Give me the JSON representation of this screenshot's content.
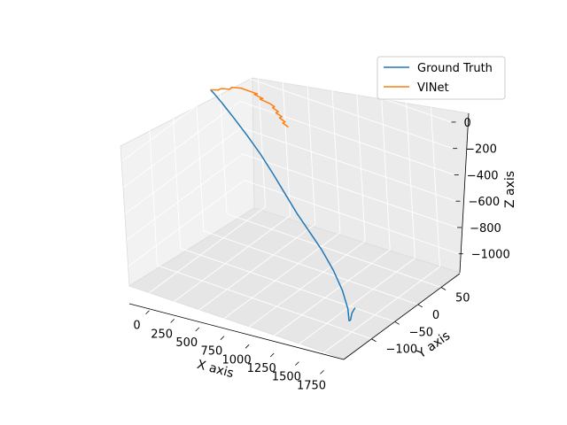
{
  "chart_data": {
    "type": "line",
    "projection": "3d",
    "title": "",
    "xlabel": "X axis",
    "ylabel": "Y axis",
    "zlabel": "Z axis",
    "xlim": [
      -200,
      1950
    ],
    "ylim": [
      -160,
      90
    ],
    "zlim": [
      -1150,
      60
    ],
    "x_ticks": [
      0,
      250,
      500,
      750,
      1000,
      1250,
      1500,
      1750
    ],
    "x_tick_labels": [
      "0",
      "250",
      "500",
      "750",
      "1000",
      "1250",
      "1500",
      "1750"
    ],
    "y_ticks": [
      -100,
      -50,
      0,
      50
    ],
    "y_tick_labels": [
      "−100",
      "−50",
      "0",
      "50"
    ],
    "z_ticks": [
      0,
      -200,
      -400,
      -600,
      -800,
      -1000
    ],
    "z_tick_labels": [
      "0",
      "−200",
      "−400",
      "−600",
      "−800",
      "−1000"
    ],
    "grid": true,
    "legend": "top-right",
    "series": [
      {
        "name": "Ground Truth",
        "color": "#1f77b4",
        "x": [
          0,
          60,
          150,
          300,
          450,
          600,
          750,
          900,
          1050,
          1200,
          1350,
          1500,
          1620,
          1700,
          1730,
          1720,
          1690,
          1700
        ],
        "y": [
          -10,
          -15,
          -18,
          -25,
          -30,
          -35,
          -42,
          -50,
          -58,
          -65,
          -72,
          -80,
          -88,
          -95,
          -100,
          -95,
          -85,
          -80
        ],
        "z": [
          0,
          0,
          -40,
          -100,
          -180,
          -270,
          -360,
          -450,
          -540,
          -620,
          -700,
          -800,
          -900,
          -1000,
          -1070,
          -1080,
          -1060,
          -1030
        ]
      },
      {
        "name": "VINet",
        "color": "#ff7f0e",
        "x": [
          0,
          30,
          10,
          50,
          20,
          70,
          40,
          100,
          60,
          130,
          90,
          160,
          120,
          200,
          240,
          210,
          260,
          230,
          280,
          250,
          300,
          270,
          320
        ],
        "y": [
          -10,
          0,
          10,
          20,
          30,
          40,
          45,
          50,
          55,
          60,
          62,
          65,
          67,
          70,
          72,
          74,
          75,
          76,
          78,
          79,
          80,
          81,
          82
        ],
        "z": [
          0,
          -20,
          -40,
          -60,
          -80,
          -100,
          -120,
          -140,
          -160,
          -180,
          -200,
          -220,
          -240,
          -260,
          -280,
          -300,
          -320,
          -340,
          -360,
          -380,
          -400,
          -420,
          -440
        ]
      }
    ]
  }
}
